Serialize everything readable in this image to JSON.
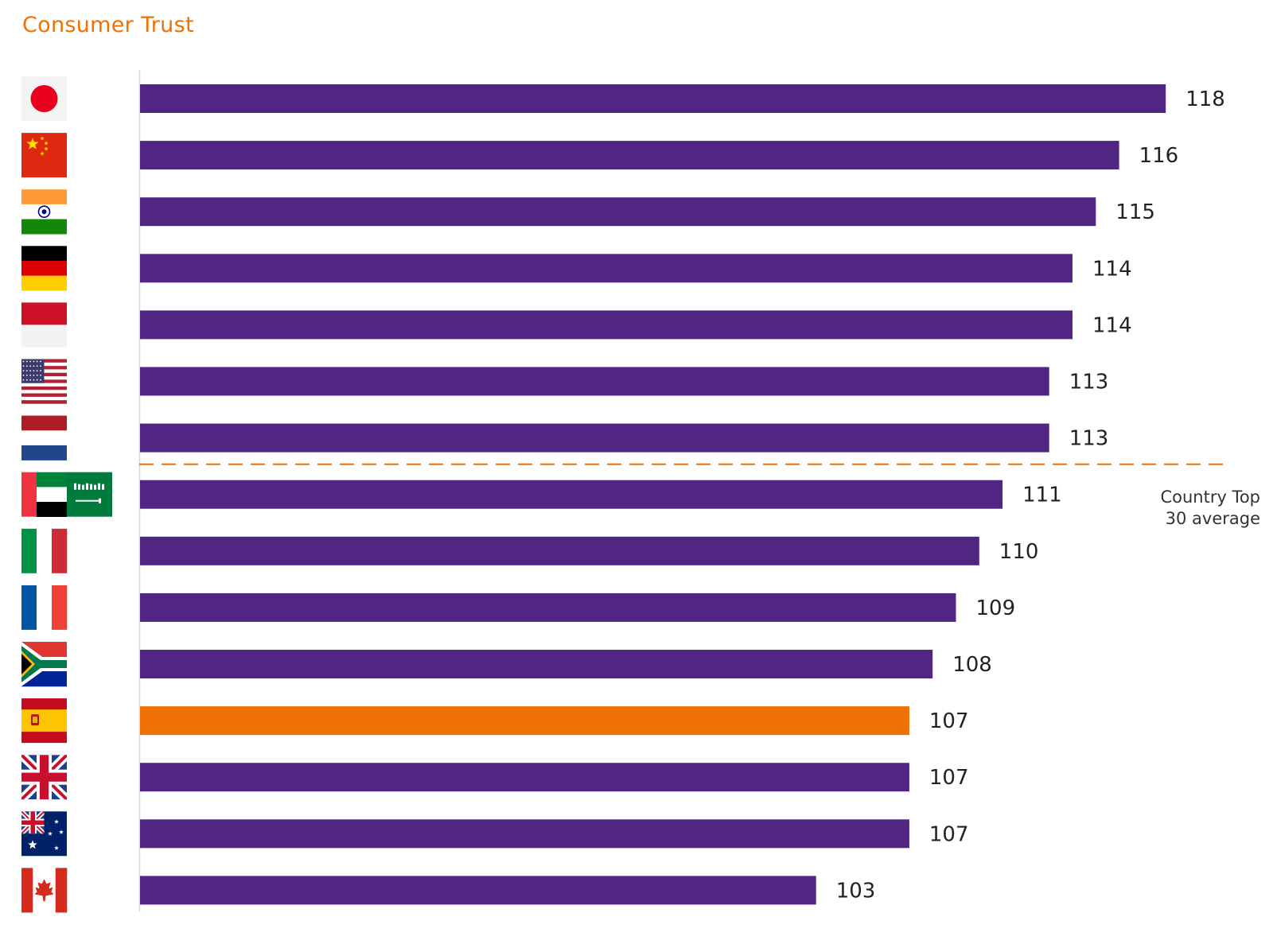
{
  "title": "Consumer Trust",
  "colors": {
    "bar": "#512683",
    "highlight": "#ef7104",
    "title": "#ef7104",
    "reference": "#ef7104"
  },
  "chart_data": {
    "type": "bar",
    "orientation": "horizontal",
    "categories": [
      "Japan",
      "China",
      "India",
      "Germany",
      "Indonesia",
      "United States",
      "Netherlands",
      "UAE / Saudi Arabia",
      "Italy",
      "France",
      "South Africa",
      "Spain",
      "United Kingdom",
      "Australia",
      "Canada"
    ],
    "flag_icons": [
      "japan-flag-icon",
      "china-flag-icon",
      "india-flag-icon",
      "germany-flag-icon",
      "indonesia-flag-icon",
      "usa-flag-icon",
      "netherlands-flag-icon",
      "uae-saudi-flag-icon",
      "italy-flag-icon",
      "france-flag-icon",
      "south-africa-flag-icon",
      "spain-flag-icon",
      "uk-flag-icon",
      "australia-flag-icon",
      "canada-flag-icon"
    ],
    "values": [
      118,
      116,
      115,
      114,
      114,
      113,
      113,
      111,
      110,
      109,
      108,
      107,
      107,
      107,
      103
    ],
    "value_labels": [
      "118",
      "116",
      "115",
      "114",
      "114",
      "113",
      "113",
      "111",
      "110",
      "109",
      "108",
      "107",
      "107",
      "107",
      "103"
    ],
    "highlight_index": 11,
    "reference_line": {
      "value": 112,
      "label_line1": "Country Top",
      "label_line2": "30 average"
    },
    "xlim": [
      74,
      122
    ],
    "axis_visible": false
  }
}
